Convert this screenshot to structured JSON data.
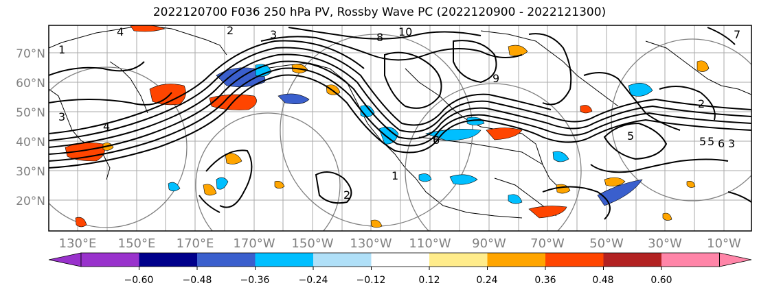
{
  "title": "2022120700 F036 250 hPa PV, Rossby Wave PC (2022120900 - 2022121300)",
  "lat_labels": [
    "70°N",
    "60°N",
    "50°N",
    "40°N",
    "30°N",
    "20°N"
  ],
  "lon_labels": [
    "130°E",
    "150°E",
    "170°E",
    "170°W",
    "150°W",
    "130°W",
    "110°W",
    "90°W",
    "70°W",
    "50°W",
    "30°W",
    "10°W"
  ],
  "colorbar": {
    "ticks": [
      "−0.60",
      "−0.48",
      "−0.36",
      "−0.24",
      "−0.12",
      "0.12",
      "0.24",
      "0.36",
      "0.48",
      "0.60"
    ],
    "colors": [
      "#9932cc",
      "#00008b",
      "#3a5fcd",
      "#00bfff",
      "#b0e0f8",
      "#ffffff",
      "#ffec8b",
      "#ffa500",
      "#ff4500",
      "#b22222",
      "#ff85a8"
    ],
    "under_color": "#9932cc",
    "over_color": "#ff85a8"
  },
  "contour_labels": [
    "4",
    "2",
    "3",
    "1",
    "10",
    "8",
    "7",
    "9",
    "3",
    "4",
    "5",
    "1",
    "2",
    "5",
    "5",
    "6",
    "3",
    "6",
    "2"
  ]
}
